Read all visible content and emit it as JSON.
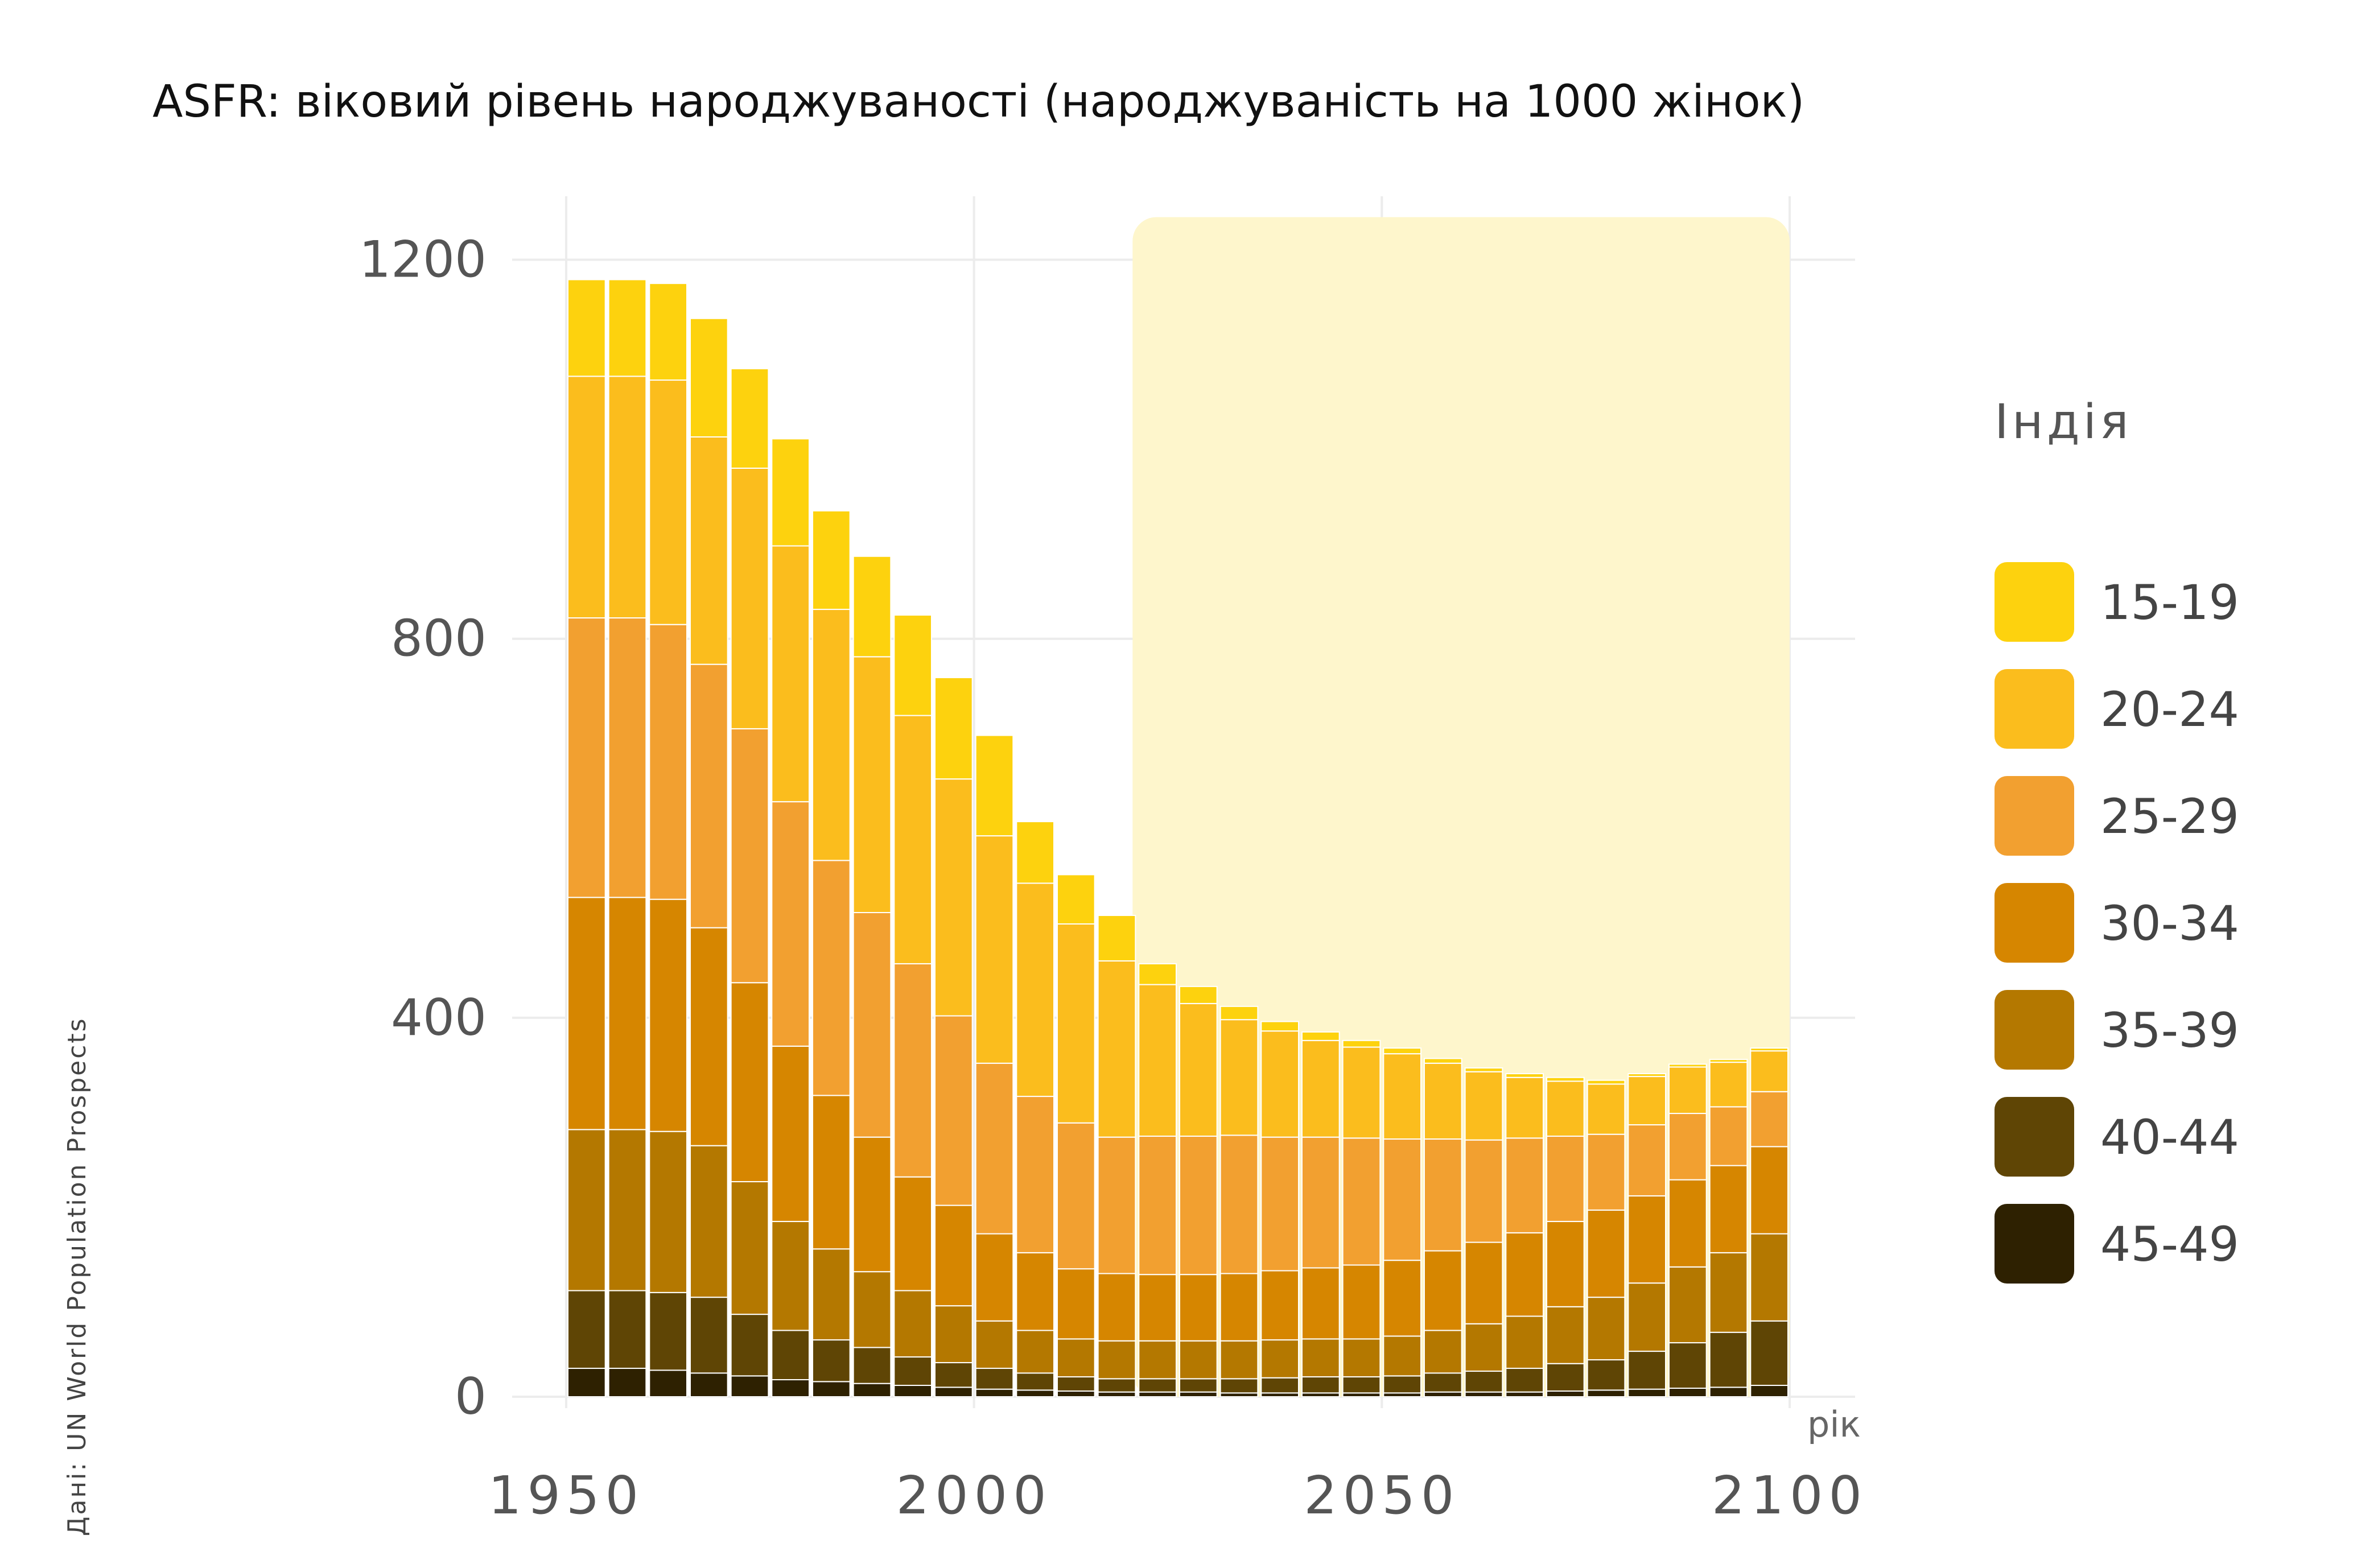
{
  "chart_data": {
    "type": "bar",
    "stacked": true,
    "title": "ASFR: віковий рівень народжуваності (народжуваність на 1000 жінок)",
    "xlabel": "рік",
    "ylabel": "",
    "source": "Дані: UN World Population Prospects",
    "legend_title": "Індія",
    "legend_position": "right",
    "grid": true,
    "xlim": [
      1950,
      2100
    ],
    "ylim": [
      0,
      1300
    ],
    "x_ticks": [
      "1950",
      "2000",
      "2050",
      "2100"
    ],
    "y_ticks": [
      "0",
      "400",
      "800",
      "1200"
    ],
    "projection_start": 2020,
    "projection_end": 2100,
    "x": [
      1950,
      1955,
      1960,
      1965,
      1970,
      1975,
      1980,
      1985,
      1990,
      1995,
      2000,
      2005,
      2010,
      2015,
      2020,
      2025,
      2030,
      2035,
      2040,
      2045,
      2050,
      2055,
      2060,
      2065,
      2070,
      2075,
      2080,
      2085,
      2090,
      2095
    ],
    "series": [
      {
        "name": "45-49",
        "color": "#2e2101",
        "values": [
          30,
          30,
          28,
          25,
          22,
          18,
          16,
          14,
          12,
          10,
          8,
          7,
          6,
          5,
          5,
          5,
          4,
          4,
          4,
          4,
          4,
          5,
          5,
          5,
          6,
          7,
          8,
          9,
          10,
          12
        ]
      },
      {
        "name": "40-44",
        "color": "#5f4505",
        "values": [
          82,
          82,
          82,
          80,
          65,
          52,
          44,
          38,
          30,
          26,
          22,
          18,
          15,
          14,
          14,
          14,
          15,
          16,
          17,
          17,
          18,
          20,
          22,
          25,
          29,
          32,
          40,
          48,
          58,
          68
        ]
      },
      {
        "name": "35-39",
        "color": "#b47800",
        "values": [
          170,
          170,
          170,
          160,
          140,
          115,
          96,
          80,
          70,
          60,
          50,
          45,
          40,
          40,
          40,
          40,
          40,
          40,
          40,
          40,
          42,
          45,
          50,
          55,
          60,
          66,
          72,
          80,
          84,
          92
        ]
      },
      {
        "name": "30-34",
        "color": "#d68600",
        "values": [
          245,
          245,
          245,
          230,
          210,
          185,
          162,
          142,
          120,
          106,
          92,
          82,
          74,
          71,
          70,
          70,
          71,
          73,
          75,
          78,
          80,
          84,
          86,
          88,
          90,
          92,
          92,
          92,
          92,
          92
        ]
      },
      {
        "name": "25-29",
        "color": "#f2a030",
        "values": [
          295,
          295,
          290,
          278,
          268,
          258,
          248,
          237,
          225,
          200,
          180,
          165,
          154,
          144,
          146,
          146,
          146,
          141,
          138,
          134,
          128,
          118,
          108,
          100,
          90,
          80,
          75,
          70,
          62,
          58
        ]
      },
      {
        "name": "20-24",
        "color": "#fbbd1d",
        "values": [
          255,
          255,
          258,
          240,
          275,
          270,
          265,
          270,
          262,
          250,
          240,
          225,
          210,
          186,
          160,
          140,
          122,
          112,
          102,
          96,
          90,
          80,
          72,
          64,
          58,
          53,
          51,
          49,
          47,
          43
        ]
      },
      {
        "name": "15-19",
        "color": "#fdd20e",
        "values": [
          102,
          102,
          102,
          125,
          105,
          113,
          104,
          106,
          106,
          107,
          106,
          65,
          52,
          48,
          22,
          18,
          14,
          10,
          9,
          7,
          6,
          5,
          4,
          4,
          4,
          4,
          3,
          3,
          3,
          3
        ]
      }
    ]
  }
}
